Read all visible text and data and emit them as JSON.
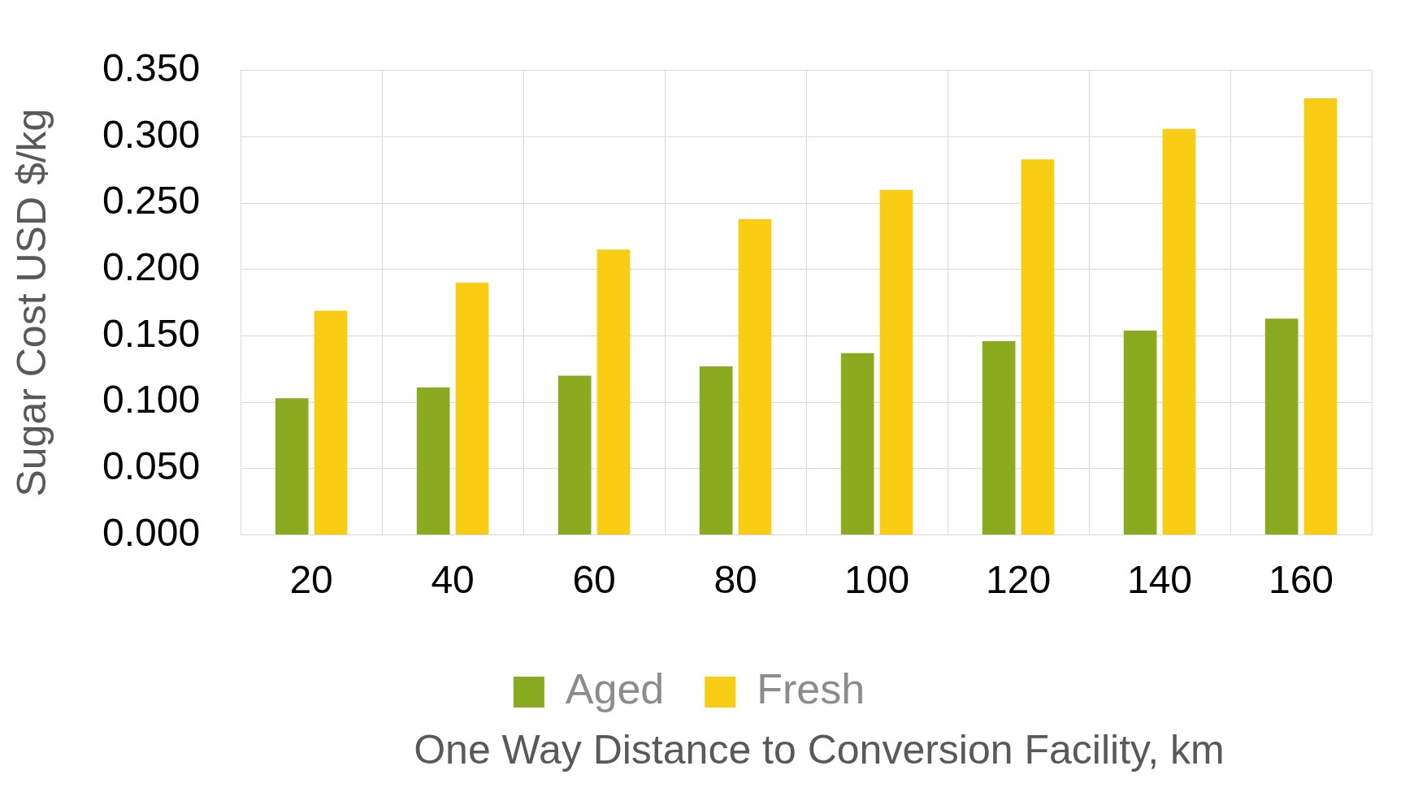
{
  "chart_data": {
    "type": "bar",
    "xlabel": "One Way Distance to Conversion Facility, km",
    "ylabel": "Sugar Cost USD $/kg",
    "categories": [
      "20",
      "40",
      "60",
      "80",
      "100",
      "120",
      "140",
      "160"
    ],
    "series": [
      {
        "name": "Aged",
        "color": "#8aaa1f",
        "values": [
          0.103,
          0.111,
          0.12,
          0.127,
          0.137,
          0.146,
          0.154,
          0.163
        ]
      },
      {
        "name": "Fresh",
        "color": "#f9cd14",
        "values": [
          0.169,
          0.19,
          0.215,
          0.238,
          0.26,
          0.283,
          0.306,
          0.329
        ]
      }
    ],
    "ylim": [
      0,
      0.35
    ],
    "yticks": [
      {
        "value": 0,
        "label": "0.000"
      },
      {
        "value": 0.05,
        "label": "0.050"
      },
      {
        "value": 0.1,
        "label": "0.100"
      },
      {
        "value": 0.15,
        "label": "0.150"
      },
      {
        "value": 0.2,
        "label": "0.200"
      },
      {
        "value": 0.25,
        "label": "0.250"
      },
      {
        "value": 0.3,
        "label": "0.300"
      },
      {
        "value": 0.35,
        "label": "0.350"
      }
    ],
    "grid": true,
    "legend": "bottom"
  }
}
